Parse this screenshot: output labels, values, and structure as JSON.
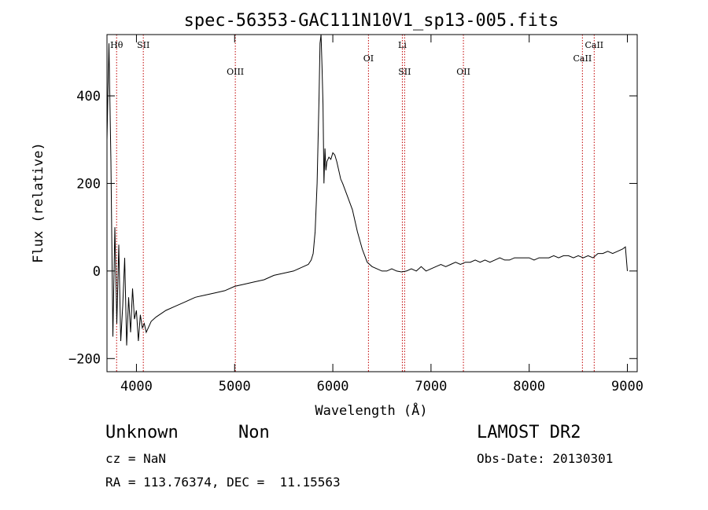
{
  "chart_data": {
    "type": "line",
    "title": "spec-56353-GAC111N10V1_sp13-005.fits",
    "xlabel": "Wavelength (Å)",
    "ylabel": "Flux (relative)",
    "xlim": [
      3700,
      9100
    ],
    "ylim": [
      -230,
      540
    ],
    "xticks": [
      4000,
      5000,
      6000,
      7000,
      8000,
      9000
    ],
    "yticks": [
      -200,
      0,
      200,
      400
    ],
    "grid": false,
    "series": [
      {
        "x": [
          3700,
          3720,
          3740,
          3760,
          3780,
          3800,
          3820,
          3840,
          3860,
          3880,
          3900,
          3920,
          3940,
          3960,
          3980,
          4000,
          4020,
          4040,
          4060,
          4080,
          4100,
          4150,
          4200,
          4300,
          4400,
          4500,
          4600,
          4700,
          4800,
          4900,
          5000,
          5100,
          5200,
          5300,
          5400,
          5500,
          5600,
          5700,
          5750,
          5780,
          5800,
          5820,
          5840,
          5860,
          5870,
          5880,
          5890,
          5900,
          5910,
          5920,
          5930,
          5940,
          5960,
          5980,
          6000,
          6020,
          6040,
          6060,
          6080,
          6100,
          6150,
          6200,
          6250,
          6300,
          6350,
          6400,
          6450,
          6500,
          6550,
          6600,
          6650,
          6700,
          6750,
          6800,
          6850,
          6900,
          6950,
          7000,
          7050,
          7100,
          7150,
          7200,
          7250,
          7300,
          7350,
          7400,
          7450,
          7500,
          7550,
          7600,
          7650,
          7700,
          7750,
          7800,
          7850,
          7900,
          7950,
          8000,
          8050,
          8100,
          8150,
          8200,
          8250,
          8300,
          8350,
          8400,
          8450,
          8500,
          8550,
          8600,
          8650,
          8700,
          8750,
          8800,
          8850,
          8900,
          8950,
          8980,
          9000
        ],
        "y": [
          300,
          520,
          250,
          -150,
          100,
          -120,
          60,
          -160,
          -80,
          30,
          -170,
          -60,
          -140,
          -40,
          -110,
          -90,
          -160,
          -100,
          -130,
          -120,
          -140,
          -115,
          -105,
          -90,
          -80,
          -70,
          -60,
          -55,
          -50,
          -45,
          -35,
          -30,
          -25,
          -20,
          -10,
          -5,
          0,
          10,
          15,
          25,
          40,
          90,
          200,
          400,
          520,
          540,
          470,
          380,
          200,
          280,
          230,
          250,
          260,
          255,
          270,
          265,
          250,
          230,
          210,
          200,
          170,
          140,
          90,
          50,
          20,
          10,
          5,
          0,
          0,
          5,
          0,
          -2,
          0,
          5,
          0,
          10,
          0,
          5,
          10,
          15,
          10,
          15,
          20,
          15,
          20,
          20,
          25,
          20,
          25,
          20,
          25,
          30,
          25,
          25,
          30,
          30,
          30,
          30,
          25,
          30,
          30,
          30,
          35,
          30,
          35,
          35,
          30,
          35,
          30,
          35,
          30,
          40,
          40,
          45,
          40,
          45,
          50,
          55,
          0
        ]
      }
    ],
    "line_markers": [
      {
        "label": "Hθ",
        "wavelength": 3798,
        "row": "top"
      },
      {
        "label": "SII",
        "wavelength": 4070,
        "row": "top"
      },
      {
        "label": "OIII",
        "wavelength": 5007,
        "row": "low"
      },
      {
        "label": "OI",
        "wavelength": 6363,
        "row": "mid"
      },
      {
        "label": "Li",
        "wavelength": 6708,
        "row": "top"
      },
      {
        "label": "SII",
        "wavelength": 6731,
        "row": "low"
      },
      {
        "label": "OII",
        "wavelength": 7330,
        "row": "low"
      },
      {
        "label": "CaII",
        "wavelength": 8542,
        "row": "mid"
      },
      {
        "label": "CaII",
        "wavelength": 8662,
        "row": "top"
      }
    ],
    "line_color": "#000000",
    "marker_color": "#c00000"
  },
  "info": {
    "class": "Unknown",
    "subclass": "Non",
    "survey": "LAMOST DR2",
    "cz": "cz = NaN",
    "obs_date": "Obs-Date: 20130301",
    "coords": "RA = 113.76374, DEC =  11.15563"
  }
}
